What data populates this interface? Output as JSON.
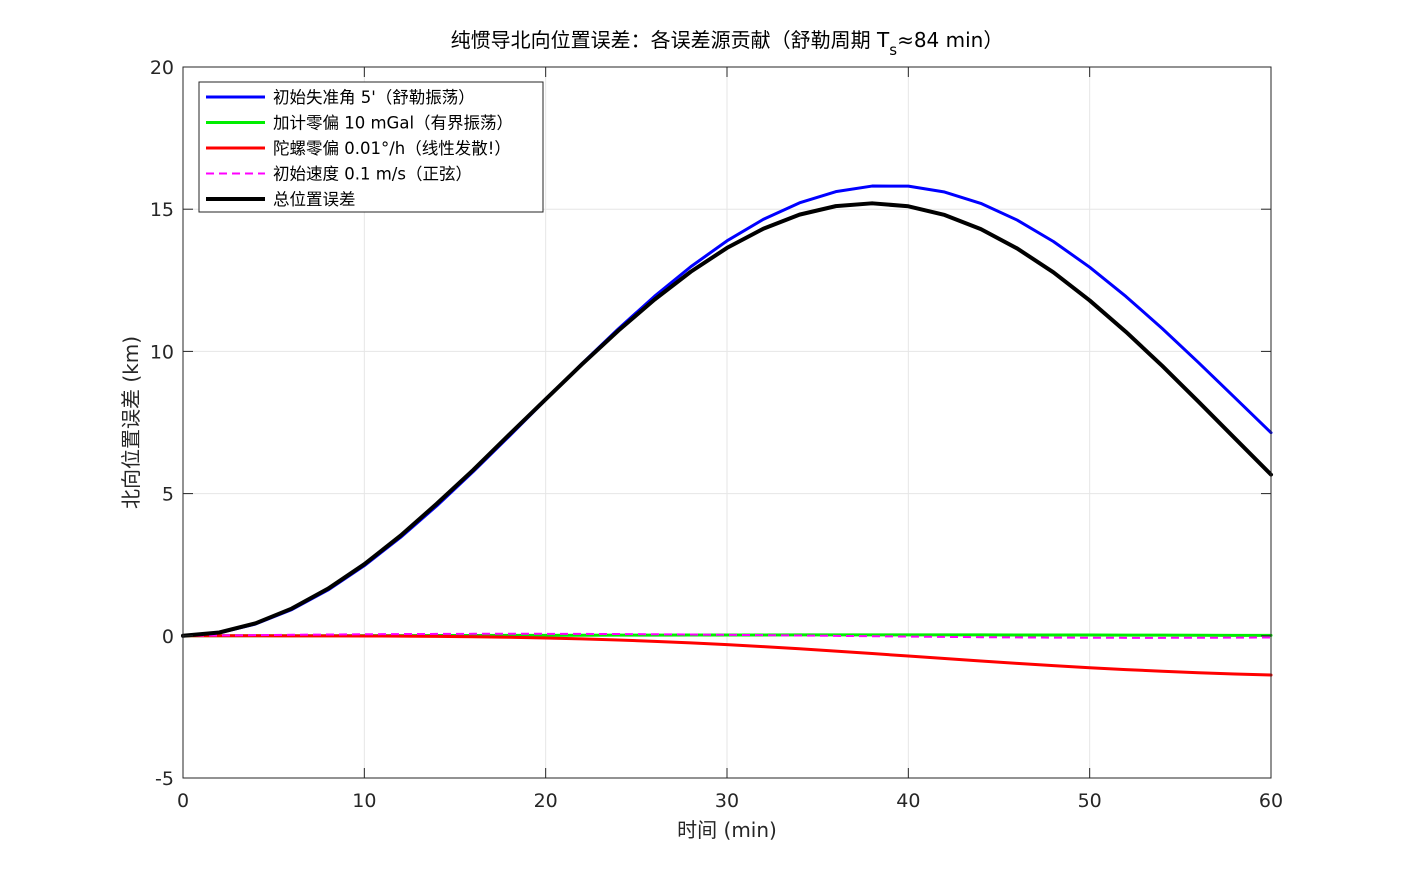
{
  "chart_data": {
    "type": "line",
    "title_main": "纯惯导北向位置误差：各误差源贡献（舒勒周期 T",
    "title_sub": "s",
    "title_tail": "≈84 min）",
    "xlabel": "时间 (min)",
    "ylabel": "北向位置误差 (km)",
    "xlim": [
      0,
      60
    ],
    "ylim": [
      -5,
      20
    ],
    "xticks": [
      "0",
      "10",
      "20",
      "30",
      "40",
      "50",
      "60"
    ],
    "yticks": [
      "-5",
      "0",
      "5",
      "10",
      "15",
      "20"
    ],
    "grid": true,
    "legend_position": "top-left",
    "x": [
      0,
      2,
      4,
      6,
      8,
      10,
      12,
      14,
      16,
      18,
      20,
      22,
      24,
      26,
      28,
      30,
      32,
      34,
      36,
      38,
      40,
      42,
      44,
      46,
      48,
      50,
      52,
      54,
      56,
      58,
      60
    ],
    "series": [
      {
        "name": "初始失准角 5'（舒勒振荡）",
        "color": "#0000ff",
        "dash": false,
        "width": 3,
        "values": [
          0.0,
          0.104,
          0.414,
          0.922,
          1.612,
          2.466,
          3.462,
          4.573,
          5.771,
          7.024,
          8.301,
          9.566,
          10.789,
          11.936,
          12.977,
          13.887,
          14.642,
          15.224,
          15.617,
          15.814,
          15.81,
          15.604,
          15.204,
          14.618,
          13.865,
          12.961,
          11.932,
          10.804,
          9.608,
          8.377,
          7.142
        ]
      },
      {
        "name": "加计零偏 10 mGal（有界振荡）",
        "color": "#00ee00",
        "dash": false,
        "width": 3,
        "values": [
          0.0,
          0.0002,
          0.0008,
          0.0019,
          0.0033,
          0.005,
          0.007,
          0.0093,
          0.0117,
          0.0143,
          0.0169,
          0.0195,
          0.0219,
          0.0243,
          0.0264,
          0.0282,
          0.0298,
          0.031,
          0.0318,
          0.0322,
          0.0321,
          0.0317,
          0.0309,
          0.0297,
          0.0282,
          0.0264,
          0.0243,
          0.022,
          0.0195,
          0.017,
          0.0145
        ]
      },
      {
        "name": "陀螺零偏 0.01°/h（线性发散!）",
        "color": "#ff0000",
        "dash": false,
        "width": 3,
        "values": [
          0.0,
          0.0,
          -0.0,
          -0.001,
          -0.003,
          -0.006,
          -0.012,
          -0.021,
          -0.034,
          -0.052,
          -0.077,
          -0.108,
          -0.147,
          -0.194,
          -0.248,
          -0.311,
          -0.381,
          -0.457,
          -0.539,
          -0.624,
          -0.712,
          -0.8,
          -0.887,
          -0.97,
          -1.049,
          -1.122,
          -1.188,
          -1.246,
          -1.297,
          -1.341,
          -1.379
        ]
      },
      {
        "name": "初始速度 0.1 m/s（正弦）",
        "color": "#ff00ff",
        "dash": true,
        "width": 2,
        "values": [
          0.0,
          0.012,
          0.024,
          0.035,
          0.045,
          0.054,
          0.061,
          0.066,
          0.07,
          0.071,
          0.07,
          0.067,
          0.062,
          0.054,
          0.045,
          0.034,
          0.023,
          0.01,
          -0.003,
          -0.015,
          -0.027,
          -0.039,
          -0.049,
          -0.057,
          -0.064,
          -0.068,
          -0.071,
          -0.071,
          -0.069,
          -0.065,
          -0.059
        ]
      },
      {
        "name": "总位置误差",
        "color": "#000000",
        "dash": false,
        "width": 4,
        "values": [
          0.0,
          0.116,
          0.439,
          0.958,
          1.657,
          2.519,
          3.522,
          4.647,
          5.828,
          7.079,
          8.315,
          9.545,
          10.726,
          11.82,
          12.801,
          13.639,
          14.312,
          14.809,
          15.108,
          15.207,
          15.103,
          14.797,
          14.299,
          13.62,
          12.781,
          11.792,
          10.688,
          9.492,
          8.232,
          6.949,
          5.668
        ]
      }
    ]
  }
}
